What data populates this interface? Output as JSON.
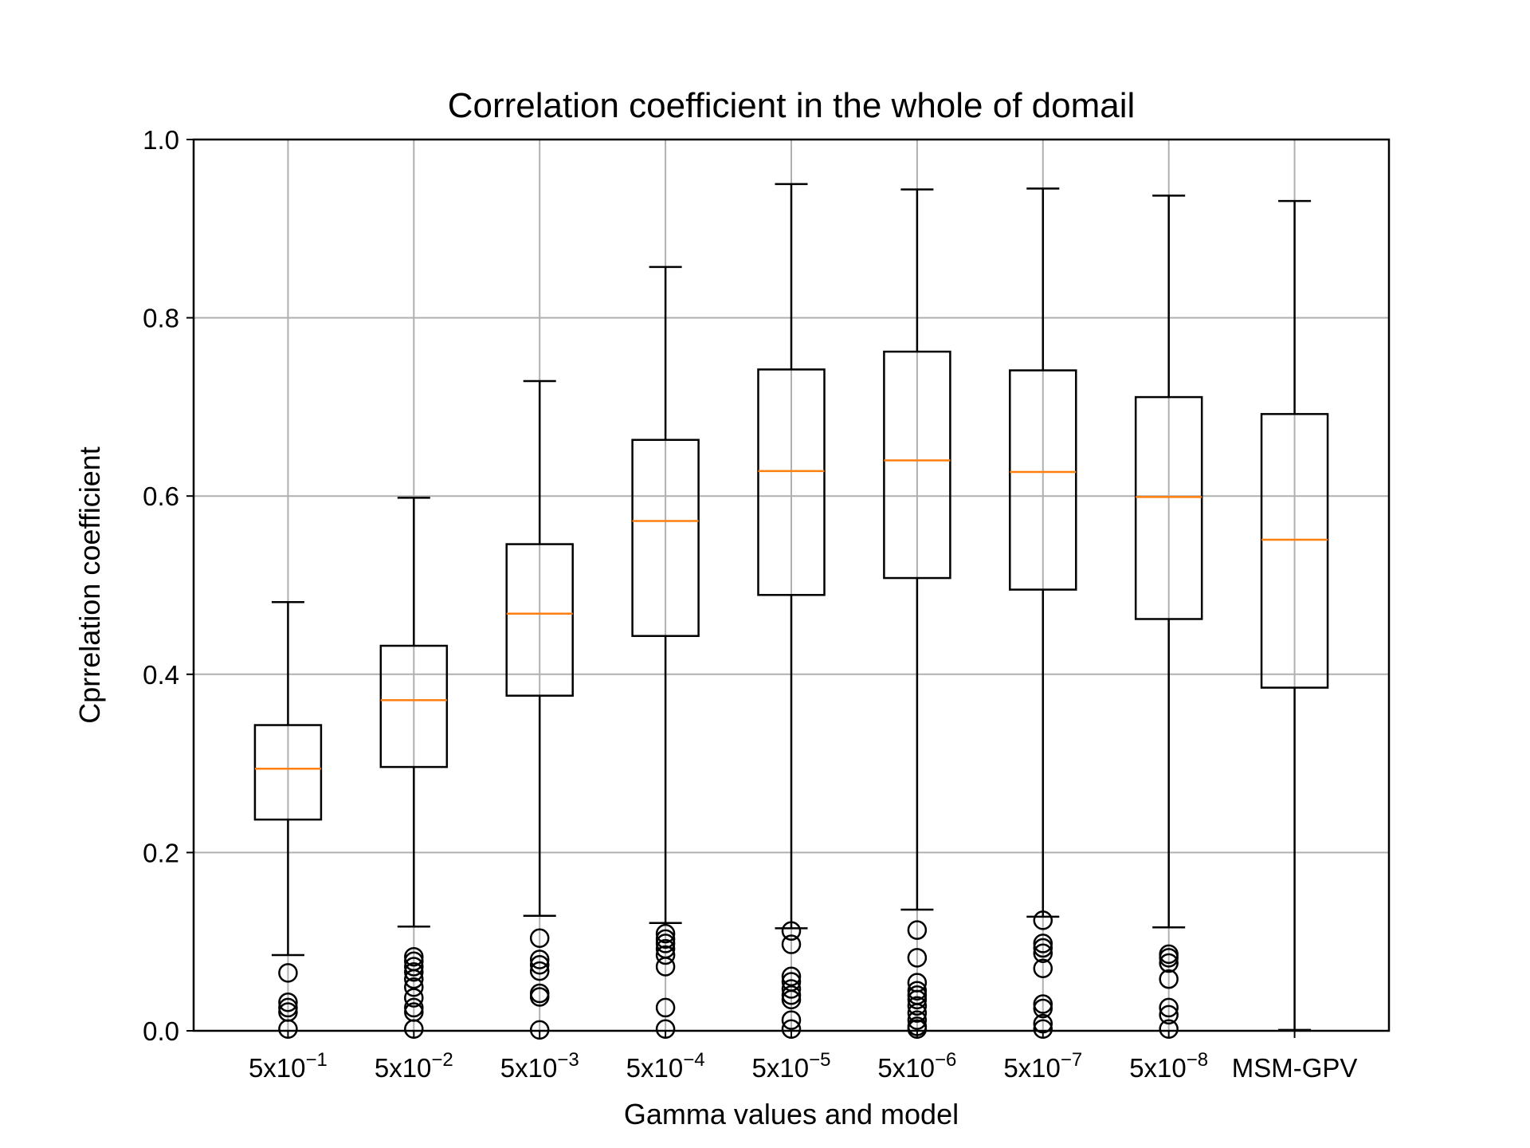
{
  "chart_data": {
    "type": "boxplot",
    "title": "Correlation coefficient in the whole of domail",
    "xlabel": "Gamma values and model",
    "ylabel": "Cprrelation coefficient",
    "ylim": [
      0.0,
      1.0
    ],
    "yticks": [
      0.0,
      0.2,
      0.4,
      0.6,
      0.8,
      1.0
    ],
    "ytick_labels": [
      "0.0",
      "0.2",
      "0.4",
      "0.6",
      "0.8",
      "1.0"
    ],
    "grid": true,
    "colors": {
      "box": "#000000",
      "median": "#ff7f0e",
      "grid": "#b0b0b0"
    },
    "categories": [
      {
        "base": "5x10",
        "exp": "−1"
      },
      {
        "base": "5x10",
        "exp": "−2"
      },
      {
        "base": "5x10",
        "exp": "−3"
      },
      {
        "base": "5x10",
        "exp": "−4"
      },
      {
        "base": "5x10",
        "exp": "−5"
      },
      {
        "base": "5x10",
        "exp": "−6"
      },
      {
        "base": "5x10",
        "exp": "−7"
      },
      {
        "base": "5x10",
        "exp": "−8"
      },
      {
        "base": "MSM-GPV",
        "exp": ""
      }
    ],
    "boxes": [
      {
        "whisker_low": 0.085,
        "q1": 0.237,
        "median": 0.294,
        "q3": 0.343,
        "whisker_high": 0.481,
        "outliers": [
          0.065,
          0.032,
          0.026,
          0.021,
          0.002
        ]
      },
      {
        "whisker_low": 0.117,
        "q1": 0.296,
        "median": 0.371,
        "q3": 0.432,
        "whisker_high": 0.598,
        "outliers": [
          0.083,
          0.078,
          0.072,
          0.066,
          0.058,
          0.049,
          0.037,
          0.026,
          0.021,
          0.002
        ]
      },
      {
        "whisker_low": 0.129,
        "q1": 0.376,
        "median": 0.468,
        "q3": 0.546,
        "whisker_high": 0.729,
        "outliers": [
          0.104,
          0.08,
          0.074,
          0.067,
          0.042,
          0.038,
          0.001
        ]
      },
      {
        "whisker_low": 0.121,
        "q1": 0.443,
        "median": 0.572,
        "q3": 0.663,
        "whisker_high": 0.857,
        "outliers": [
          0.109,
          0.103,
          0.098,
          0.092,
          0.085,
          0.072,
          0.026,
          0.002
        ]
      },
      {
        "whisker_low": 0.115,
        "q1": 0.489,
        "median": 0.628,
        "q3": 0.742,
        "whisker_high": 0.95,
        "outliers": [
          0.112,
          0.097,
          0.061,
          0.055,
          0.047,
          0.04,
          0.035,
          0.012,
          0.002
        ]
      },
      {
        "whisker_low": 0.136,
        "q1": 0.508,
        "median": 0.64,
        "q3": 0.762,
        "whisker_high": 0.944,
        "outliers": [
          0.113,
          0.082,
          0.054,
          0.045,
          0.04,
          0.035,
          0.028,
          0.02,
          0.012,
          0.005,
          0.002
        ]
      },
      {
        "whisker_low": 0.128,
        "q1": 0.495,
        "median": 0.627,
        "q3": 0.741,
        "whisker_high": 0.945,
        "outliers": [
          0.124,
          0.098,
          0.093,
          0.087,
          0.07,
          0.03,
          0.025,
          0.008,
          0.002
        ]
      },
      {
        "whisker_low": 0.116,
        "q1": 0.462,
        "median": 0.599,
        "q3": 0.711,
        "whisker_high": 0.937,
        "outliers": [
          0.086,
          0.082,
          0.076,
          0.058,
          0.026,
          0.018,
          0.002
        ]
      },
      {
        "whisker_low": 0.001,
        "q1": 0.385,
        "median": 0.551,
        "q3": 0.692,
        "whisker_high": 0.931,
        "outliers": []
      }
    ]
  }
}
